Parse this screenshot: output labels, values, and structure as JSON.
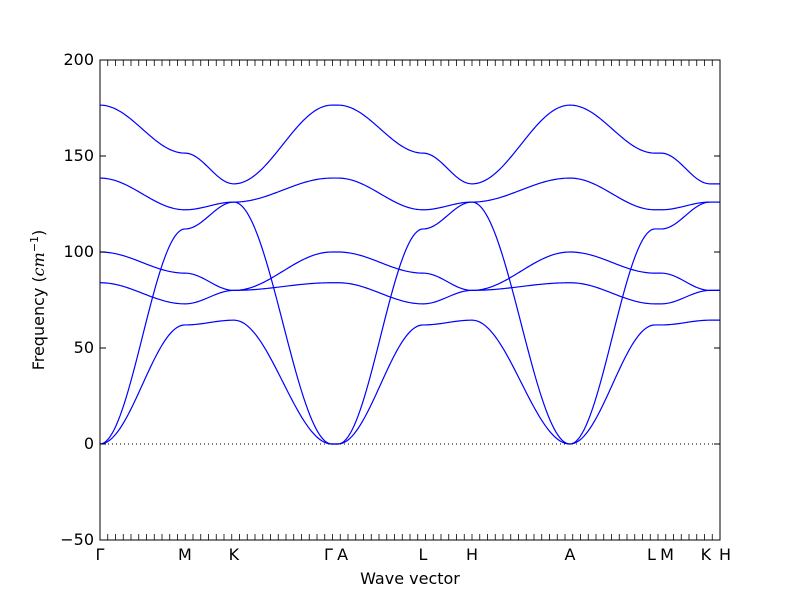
{
  "chart_data": {
    "type": "line",
    "title": "",
    "xlabel": "Wave vector",
    "ylabel": "Frequency (",
    "ylabel_unit": "cm",
    "ylabel_unit_exponent": "−1",
    "ylabel_close": ")",
    "ylim": [
      -50,
      200
    ],
    "yticks": [
      -50,
      0,
      50,
      100,
      150,
      200
    ],
    "ytick_labels": [
      "−50",
      "0",
      "50",
      "100",
      "150",
      "200"
    ],
    "xlim": [
      0,
      1
    ],
    "high_symmetry_points": [
      {
        "label": "Γ",
        "x": 0.0
      },
      {
        "label": "M",
        "x": 0.137
      },
      {
        "label": "K",
        "x": 0.216
      },
      {
        "label": "Γ",
        "x": 0.374
      },
      {
        "label": "A",
        "x": 0.384
      },
      {
        "label": "L",
        "x": 0.521
      },
      {
        "label": "H",
        "x": 0.6
      },
      {
        "label": "A",
        "x": 0.758
      },
      {
        "label": "L",
        "x": 0.895
      },
      {
        "label": "M",
        "x": 0.905
      },
      {
        "label": "K",
        "x": 0.984
      },
      {
        "label": "H",
        "x": 1.0
      }
    ],
    "zero_line": {
      "y": 0,
      "style": "dotted"
    },
    "grid": false,
    "legend": "none",
    "line_color": "#0000ff",
    "series": [
      {
        "x": [
          0,
          0.137,
          0.216,
          0.374,
          0.384,
          0.521,
          0.6,
          0.758,
          0.895,
          0.905,
          0.984,
          1.0
        ],
        "y": [
          0,
          62,
          64.5,
          0,
          0,
          62,
          64.5,
          0,
          62,
          62,
          64.5,
          64.5
        ]
      },
      {
        "x": [
          0,
          0.137,
          0.216,
          0.374,
          0.384,
          0.521,
          0.6,
          0.758,
          0.895,
          0.905,
          0.984,
          1.0
        ],
        "y": [
          0,
          112,
          126,
          0,
          0,
          112,
          126,
          0,
          112,
          112,
          126,
          126
        ]
      },
      {
        "x": [
          0,
          0.137,
          0.216,
          0.374,
          0.384,
          0.521,
          0.6,
          0.758,
          0.895,
          0.905,
          0.984,
          1.0
        ],
        "y": [
          84,
          73,
          80,
          84,
          84,
          73,
          80,
          84,
          73,
          73,
          80,
          80
        ]
      },
      {
        "x": [
          0,
          0.137,
          0.216,
          0.374,
          0.384,
          0.521,
          0.6,
          0.758,
          0.895,
          0.905,
          0.984,
          1.0
        ],
        "y": [
          100,
          89,
          80,
          100,
          100,
          89,
          80,
          100,
          89,
          89,
          80,
          80
        ]
      },
      {
        "x": [
          0,
          0.137,
          0.216,
          0.374,
          0.384,
          0.521,
          0.6,
          0.758,
          0.895,
          0.905,
          0.984,
          1.0
        ],
        "y": [
          138.5,
          122,
          126,
          138.5,
          138.5,
          122,
          126,
          138.5,
          122,
          122,
          126,
          126
        ]
      },
      {
        "x": [
          0,
          0.137,
          0.216,
          0.374,
          0.384,
          0.521,
          0.6,
          0.758,
          0.895,
          0.905,
          0.984,
          1.0
        ],
        "y": [
          176.5,
          151.5,
          135.5,
          176.5,
          176.5,
          151.5,
          135.5,
          176.5,
          151.5,
          151.5,
          135.5,
          135.5
        ]
      }
    ]
  }
}
